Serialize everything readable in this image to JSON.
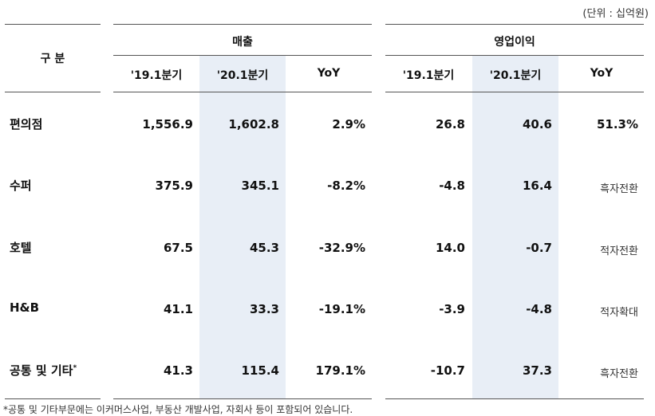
{
  "unit_label": "(단위 : 십억원)",
  "header": {
    "category": "구 분",
    "sales": "매출",
    "op_profit": "영업이익",
    "period_prev": "'19.1분기",
    "period_curr": "'20.1분기",
    "yoy": "YoY"
  },
  "rows": [
    {
      "label": "편의점",
      "sales_prev": "1,556.9",
      "sales_curr": "1,602.8",
      "sales_yoy": "2.9%",
      "op_prev": "26.8",
      "op_curr": "40.6",
      "op_yoy": "51.3%"
    },
    {
      "label": "수퍼",
      "sales_prev": "375.9",
      "sales_curr": "345.1",
      "sales_yoy": "-8.2%",
      "op_prev": "-4.8",
      "op_curr": "16.4",
      "op_yoy": "흑자전환"
    },
    {
      "label": "호텔",
      "sales_prev": "67.5",
      "sales_curr": "45.3",
      "sales_yoy": "-32.9%",
      "op_prev": "14.0",
      "op_curr": "-0.7",
      "op_yoy": "적자전환"
    },
    {
      "label": "H&B",
      "sales_prev": "41.1",
      "sales_curr": "33.3",
      "sales_yoy": "-19.1%",
      "op_prev": "-3.9",
      "op_curr": "-4.8",
      "op_yoy": "적자확대"
    },
    {
      "label": "공통 및 기타",
      "label_mark": "*",
      "sales_prev": "41.3",
      "sales_curr": "115.4",
      "sales_yoy": "179.1%",
      "op_prev": "-10.7",
      "op_curr": "37.3",
      "op_yoy": "흑자전환"
    }
  ],
  "footnote": "*공통 및 기타부문에는 이커머스사업, 부동산 개발사업, 자회사 등이 포함되어 있습니다."
}
